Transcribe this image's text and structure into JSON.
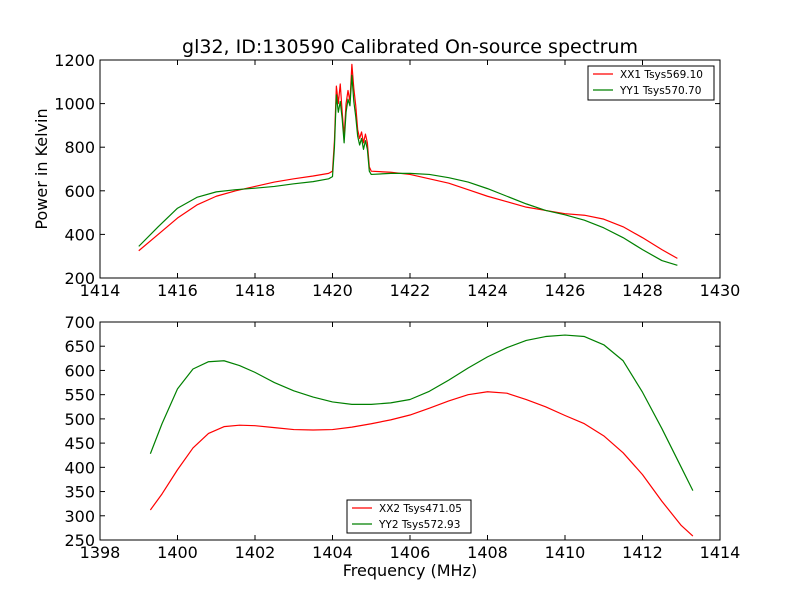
{
  "colors": {
    "red": "#ff0000",
    "green": "#008000",
    "frame": "#000000"
  },
  "chart_data": [
    {
      "type": "line",
      "title": "gl32, ID:130590 Calibrated On-source spectrum",
      "xlabel": "",
      "ylabel": "Power in Kelvin",
      "xlim": [
        1414,
        1430
      ],
      "ylim": [
        200,
        1200
      ],
      "xticks": [
        1414,
        1416,
        1418,
        1420,
        1422,
        1424,
        1426,
        1428,
        1430
      ],
      "yticks": [
        200,
        400,
        600,
        800,
        1000,
        1200
      ],
      "legend": "top-right",
      "series": [
        {
          "name": "XX1 Tsys569.10",
          "color": "#ff0000",
          "x": [
            1415.0,
            1415.5,
            1416.0,
            1416.5,
            1417.0,
            1417.5,
            1418.0,
            1418.5,
            1419.0,
            1419.5,
            1419.9,
            1420.0,
            1420.05,
            1420.1,
            1420.15,
            1420.2,
            1420.25,
            1420.3,
            1420.35,
            1420.4,
            1420.45,
            1420.5,
            1420.55,
            1420.6,
            1420.65,
            1420.7,
            1420.75,
            1420.8,
            1420.85,
            1420.9,
            1420.95,
            1421.0,
            1421.5,
            1422.0,
            1422.5,
            1423.0,
            1423.5,
            1424.0,
            1424.5,
            1425.0,
            1425.5,
            1426.0,
            1426.5,
            1427.0,
            1427.5,
            1428.0,
            1428.5,
            1428.9
          ],
          "y": [
            325,
            400,
            475,
            535,
            575,
            600,
            620,
            640,
            655,
            668,
            680,
            690,
            830,
            1080,
            1000,
            1090,
            960,
            850,
            1000,
            1060,
            1010,
            1180,
            1070,
            990,
            880,
            840,
            870,
            820,
            860,
            820,
            710,
            690,
            685,
            675,
            655,
            635,
            605,
            575,
            550,
            525,
            510,
            495,
            488,
            470,
            435,
            385,
            330,
            290
          ]
        },
        {
          "name": "YY1 Tsys570.70",
          "color": "#008000",
          "x": [
            1415.0,
            1415.5,
            1416.0,
            1416.5,
            1417.0,
            1417.5,
            1418.0,
            1418.5,
            1419.0,
            1419.5,
            1419.9,
            1420.0,
            1420.05,
            1420.1,
            1420.15,
            1420.2,
            1420.25,
            1420.3,
            1420.35,
            1420.4,
            1420.45,
            1420.5,
            1420.55,
            1420.6,
            1420.65,
            1420.7,
            1420.75,
            1420.8,
            1420.85,
            1420.9,
            1420.95,
            1421.0,
            1421.5,
            1422.0,
            1422.5,
            1423.0,
            1423.5,
            1424.0,
            1424.5,
            1425.0,
            1425.5,
            1426.0,
            1426.5,
            1427.0,
            1427.5,
            1428.0,
            1428.5,
            1428.9
          ],
          "y": [
            345,
            435,
            520,
            570,
            595,
            605,
            612,
            620,
            632,
            642,
            655,
            665,
            800,
            1040,
            960,
            1010,
            930,
            820,
            960,
            1020,
            990,
            1130,
            1010,
            940,
            850,
            810,
            840,
            790,
            830,
            790,
            690,
            675,
            680,
            680,
            675,
            660,
            640,
            610,
            575,
            540,
            510,
            490,
            465,
            430,
            385,
            330,
            280,
            258
          ]
        }
      ]
    },
    {
      "type": "line",
      "title": "",
      "xlabel": "Frequency (MHz)",
      "ylabel": "",
      "xlim": [
        1398,
        1414
      ],
      "ylim": [
        250,
        700
      ],
      "xticks": [
        1398,
        1400,
        1402,
        1404,
        1406,
        1408,
        1410,
        1412,
        1414
      ],
      "yticks": [
        250,
        300,
        350,
        400,
        450,
        500,
        550,
        600,
        650,
        700
      ],
      "legend": "bottom-center",
      "series": [
        {
          "name": "XX2 Tsys471.05",
          "color": "#ff0000",
          "x": [
            1399.3,
            1399.6,
            1400.0,
            1400.4,
            1400.8,
            1401.2,
            1401.6,
            1402.0,
            1402.5,
            1403.0,
            1403.5,
            1404.0,
            1404.5,
            1405.0,
            1405.5,
            1406.0,
            1406.5,
            1407.0,
            1407.5,
            1408.0,
            1408.5,
            1409.0,
            1409.5,
            1410.0,
            1410.5,
            1411.0,
            1411.5,
            1412.0,
            1412.5,
            1413.0,
            1413.3
          ],
          "y": [
            312,
            345,
            395,
            440,
            470,
            484,
            487,
            486,
            482,
            478,
            477,
            478,
            483,
            490,
            498,
            508,
            522,
            537,
            550,
            556,
            553,
            540,
            525,
            507,
            490,
            465,
            430,
            385,
            330,
            280,
            258
          ]
        },
        {
          "name": "YY2 Tsys572.93",
          "color": "#008000",
          "x": [
            1399.3,
            1399.6,
            1400.0,
            1400.4,
            1400.8,
            1401.2,
            1401.6,
            1402.0,
            1402.5,
            1403.0,
            1403.5,
            1404.0,
            1404.5,
            1405.0,
            1405.5,
            1406.0,
            1406.5,
            1407.0,
            1407.5,
            1408.0,
            1408.5,
            1409.0,
            1409.5,
            1410.0,
            1410.5,
            1411.0,
            1411.5,
            1412.0,
            1412.5,
            1413.0,
            1413.3
          ],
          "y": [
            428,
            490,
            562,
            603,
            618,
            620,
            610,
            596,
            575,
            558,
            545,
            535,
            530,
            530,
            533,
            540,
            557,
            580,
            605,
            628,
            647,
            662,
            670,
            673,
            670,
            653,
            620,
            555,
            480,
            400,
            352
          ]
        }
      ]
    }
  ]
}
